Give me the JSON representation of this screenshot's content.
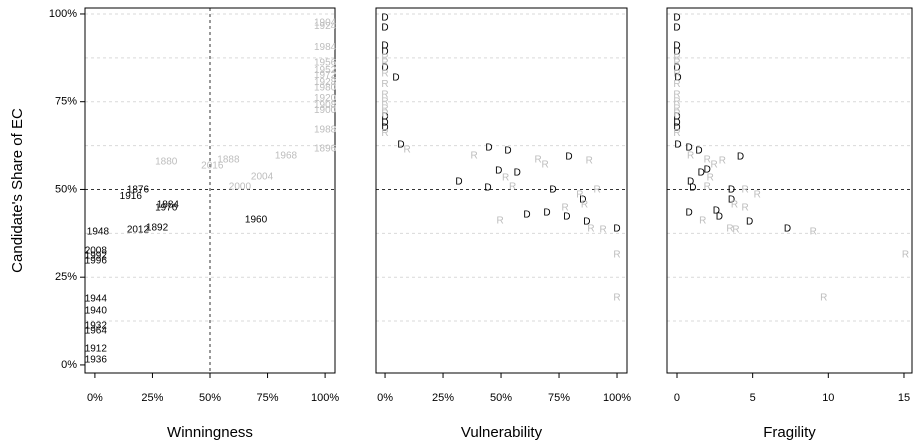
{
  "chart_data": [
    {
      "type": "scatter",
      "xlabel": "Winningness",
      "ylabel": "Candidate's Share of EC",
      "xlim": [
        -4.3,
        104.3
      ],
      "ylim": [
        -2.3,
        101.7
      ],
      "xticks": [
        {
          "value": 0,
          "label": "0%"
        },
        {
          "value": 25,
          "label": "25%"
        },
        {
          "value": 50,
          "label": "50%"
        },
        {
          "value": 75,
          "label": "75%"
        },
        {
          "value": 100,
          "label": "100%"
        }
      ],
      "yticks": [
        {
          "value": 0,
          "label": "0%"
        },
        {
          "value": 25,
          "label": "25%"
        },
        {
          "value": 50,
          "label": "50%"
        },
        {
          "value": 75,
          "label": "75%"
        },
        {
          "value": 100,
          "label": "100%"
        }
      ],
      "ygrid": [
        12.5,
        25,
        37.5,
        62.5,
        75,
        87.5,
        100
      ],
      "hlines": [
        50
      ],
      "vlines": [
        50
      ],
      "series": [
        {
          "color": "#000000",
          "labels": [
            "1876",
            "1916",
            "1884",
            "1976",
            "1960",
            "1892",
            "2012",
            "1948",
            "2008",
            "1992",
            "1996",
            "1944",
            "1940",
            "1932",
            "1964",
            "1912",
            "1936"
          ],
          "x": [
            18.7,
            15.6,
            31.7,
            31,
            70,
            27,
            18.7,
            1.3,
            0.4,
            0.4,
            0.4,
            0.4,
            0.4,
            0.4,
            0.4,
            0.4,
            0.4
          ],
          "y": [
            49.9,
            48.1,
            45.6,
            44.7,
            41.3,
            39,
            38.5,
            37.9,
            32.5,
            31.1,
            29.6,
            18.8,
            15.4,
            11.1,
            9.7,
            4.6,
            1.4
          ]
        },
        {
          "color": "#bdbdbd",
          "labels": [
            "1880",
            "2016",
            "1888",
            "1968",
            "2004",
            "2000",
            "1904",
            "1924",
            "1984",
            "1956",
            "1952",
            "1972",
            "1928",
            "1980",
            "1920",
            "1908",
            "1900",
            "1988",
            "1896"
          ],
          "x": [
            31,
            51,
            58,
            83,
            72.6,
            63,
            100,
            100,
            100,
            100,
            100,
            100,
            100,
            100,
            100,
            100,
            100,
            100,
            100
          ],
          "y": [
            57.8,
            56.7,
            58.4,
            59.5,
            53.6,
            50.7,
            97.5,
            96.5,
            90.5,
            86,
            84,
            82.5,
            80.5,
            79,
            76,
            74,
            72.5,
            67,
            61.5
          ]
        }
      ]
    },
    {
      "type": "scatter",
      "xlabel": "Vulnerability",
      "xlim": [
        -3.9,
        104.3
      ],
      "ylim": [
        -2.3,
        101.7
      ],
      "xticks": [
        {
          "value": 0,
          "label": "0%"
        },
        {
          "value": 25,
          "label": "25%"
        },
        {
          "value": 50,
          "label": "50%"
        },
        {
          "value": 75,
          "label": "75%"
        },
        {
          "value": 100,
          "label": "100%"
        }
      ],
      "ygrid": [
        12.5,
        25,
        37.5,
        62.5,
        75,
        87.5,
        100
      ],
      "hlines": [
        50
      ],
      "series": [
        {
          "color": "#000000",
          "labels": [
            "D",
            "D",
            "D",
            "D",
            "D",
            "D",
            "D",
            "D",
            "D",
            "D",
            "D",
            "D",
            "D",
            "D",
            "D",
            "D",
            "D",
            "D",
            "D",
            "D",
            "D",
            "D",
            "D",
            "D"
          ],
          "x": [
            0,
            0,
            0,
            0,
            0,
            4.7,
            0,
            0,
            0,
            6.9,
            44.8,
            53,
            79.3,
            49,
            57,
            31.9,
            44.4,
            72.4,
            85.3,
            61.2,
            69.8,
            78.4,
            87,
            100
          ],
          "y": [
            98.9,
            96,
            90.9,
            89.2,
            84.6,
            81.8,
            70.7,
            69,
            67.5,
            62.7,
            61.8,
            61,
            59.3,
            55.3,
            54.7,
            52.1,
            50.4,
            49.9,
            47,
            42.7,
            43.3,
            42.2,
            40.7,
            38.7
          ]
        },
        {
          "color": "#bdbdbd",
          "labels": [
            "R",
            "R",
            "R",
            "R",
            "R",
            "R",
            "R",
            "R",
            "R",
            "R",
            "R",
            "R",
            "R",
            "R",
            "R",
            "R",
            "R",
            "R",
            "R",
            "R",
            "R",
            "R",
            "R",
            "R",
            "R"
          ],
          "x": [
            0,
            0,
            0,
            0,
            0,
            0,
            0,
            0,
            0,
            9.5,
            38.4,
            66,
            69,
            88,
            52,
            55,
            91.4,
            84,
            77.6,
            86,
            49.6,
            88.8,
            94,
            100,
            100
          ],
          "y": [
            87.5,
            86,
            83,
            80,
            77,
            75,
            73,
            71.5,
            66,
            61.3,
            59.5,
            58.4,
            57,
            58.1,
            53.3,
            50.7,
            49.9,
            48.4,
            44.7,
            45.6,
            41,
            38.7,
            38.5,
            31.3,
            19.1
          ]
        }
      ]
    },
    {
      "type": "scatter",
      "xlabel": "Fragility",
      "xlim": [
        -0.66,
        15.53
      ],
      "ylim": [
        -2.3,
        101.7
      ],
      "xticks": [
        0,
        5,
        10,
        15
      ],
      "ygrid": [
        12.5,
        25,
        37.5,
        62.5,
        75,
        87.5,
        100
      ],
      "hlines": [
        50
      ],
      "series": [
        {
          "color": "#000000",
          "labels": [
            "D",
            "D",
            "D",
            "D",
            "D",
            "D",
            "D",
            "D",
            "D",
            "D",
            "D",
            "D",
            "D",
            "D",
            "D",
            "D",
            "D",
            "D",
            "D",
            "D",
            "D",
            "D",
            "D",
            "D"
          ],
          "x": [
            0,
            0,
            0,
            0,
            0,
            0.07,
            0,
            0,
            0,
            0.07,
            0.8,
            1.45,
            4.2,
            2,
            1.6,
            0.9,
            1.05,
            3.6,
            3.6,
            0.8,
            2.6,
            2.8,
            4.8,
            7.3
          ],
          "y": [
            98.9,
            96,
            90.9,
            89.2,
            84.6,
            81.8,
            70.7,
            69,
            67.5,
            62.7,
            61.8,
            61,
            59.3,
            55.6,
            54.7,
            52.1,
            50.4,
            49.9,
            47,
            43.3,
            43.9,
            42.2,
            40.7,
            38.7
          ]
        },
        {
          "color": "#bdbdbd",
          "labels": [
            "R",
            "R",
            "R",
            "R",
            "R",
            "R",
            "R",
            "R",
            "R",
            "R",
            "R",
            "R",
            "R",
            "R",
            "R",
            "R",
            "R",
            "R",
            "R",
            "R",
            "R",
            "R",
            "R",
            "R",
            "R"
          ],
          "x": [
            0,
            0,
            0,
            0,
            0,
            0,
            0,
            0,
            0,
            0.9,
            2,
            2.45,
            3,
            2.2,
            2,
            4.5,
            5.3,
            4.5,
            3.8,
            1.7,
            3.5,
            3.9,
            15.1,
            9.7,
            9
          ],
          "y": [
            87.5,
            86,
            83,
            80,
            77,
            75,
            73,
            71.5,
            66,
            59.5,
            58.4,
            57,
            58.1,
            53.3,
            50.7,
            49.9,
            48.4,
            44.7,
            45.6,
            41,
            38.7,
            38.5,
            31.3,
            19.1,
            37.9
          ]
        }
      ]
    }
  ]
}
